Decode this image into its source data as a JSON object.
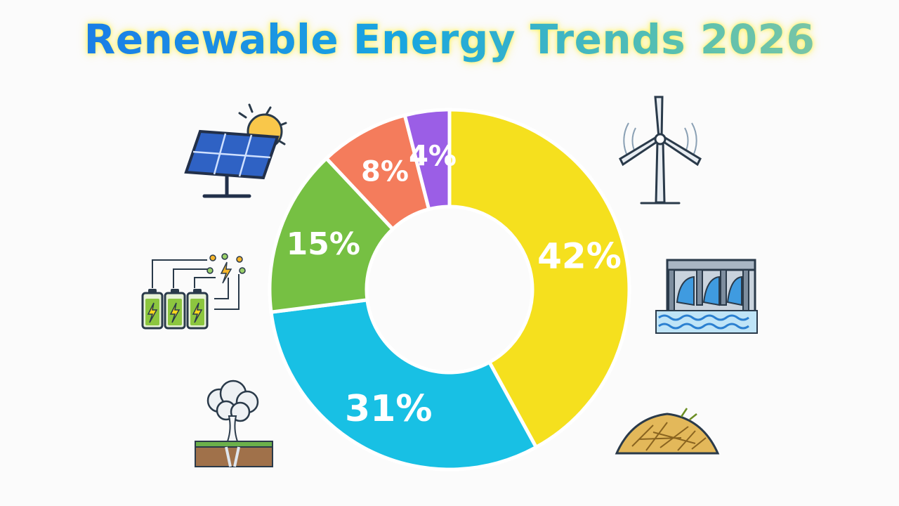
{
  "chart_data": {
    "type": "pie",
    "style": "donut",
    "title": "Renewable Energy Trends 2026",
    "slices": [
      {
        "label": "42%",
        "value": 42,
        "color": "#f5e01e"
      },
      {
        "label": "31%",
        "value": 31,
        "color": "#18c0e4"
      },
      {
        "label": "15%",
        "value": 15,
        "color": "#76c043"
      },
      {
        "label": "8%",
        "value": 8,
        "color": "#f47c5c"
      },
      {
        "label": "4%",
        "value": 4,
        "color": "#9b5ee6"
      }
    ]
  },
  "icons": [
    "solar-panel-icon",
    "wind-turbine-icon",
    "battery-storage-icon",
    "hydro-dam-icon",
    "geothermal-geyser-icon",
    "biomass-hay-icon"
  ]
}
